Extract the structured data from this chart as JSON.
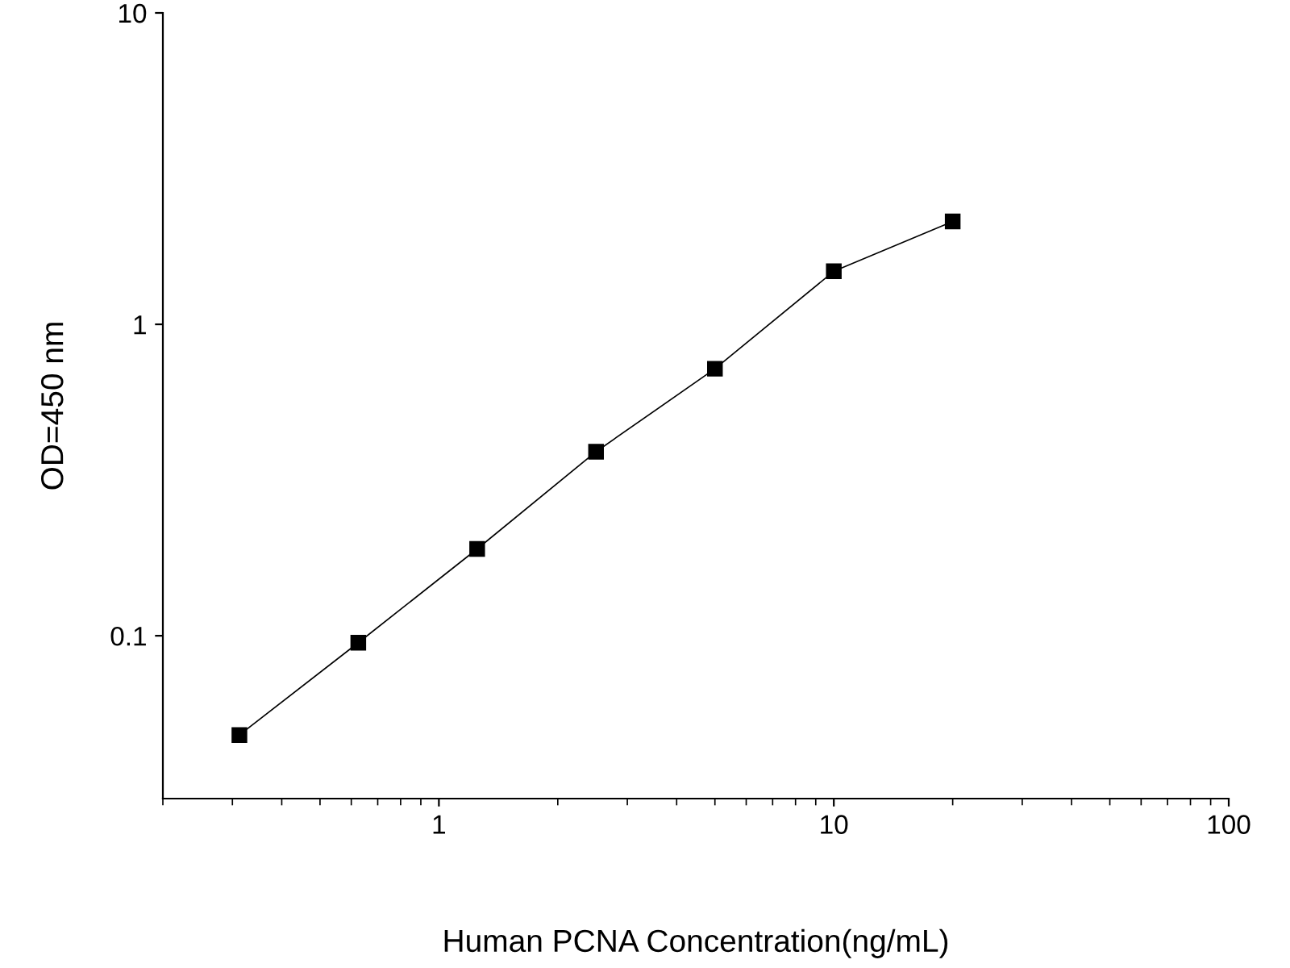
{
  "chart_data": {
    "type": "line",
    "xlabel": "Human PCNA Concentration(ng/mL)",
    "ylabel": "OD=450 nm",
    "log": "xy",
    "x": [
      0.3125,
      0.625,
      1.25,
      2.5,
      5,
      10,
      20
    ],
    "series": [
      {
        "color": "#000000",
        "values": [
          0.048,
          0.095,
          0.19,
          0.39,
          0.72,
          1.48,
          2.14
        ]
      }
    ],
    "xlim": [
      0.2,
      100
    ],
    "xticks": [
      1,
      10,
      100
    ],
    "ylim": [
      0.03,
      10
    ],
    "yticks": [
      0.1,
      1,
      10
    ],
    "marker": "square",
    "line_style": "solid",
    "grid": false,
    "legend": false
  }
}
